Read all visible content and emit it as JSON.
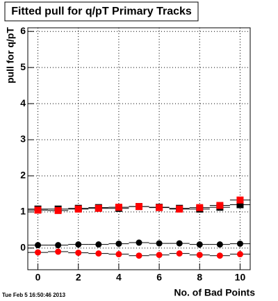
{
  "chart_data": {
    "type": "scatter",
    "title": "Fitted pull for q/pT Primary Tracks",
    "y_label": "pull for q/pT",
    "x_label": "No. of Bad Points",
    "footer": "Tue Feb  5 16:50:46 2013",
    "x": [
      0,
      1,
      2,
      3,
      4,
      5,
      6,
      7,
      8,
      9,
      10
    ],
    "series": [
      {
        "color": "#000000",
        "marker": "circle",
        "values": [
          0.08,
          0.08,
          0.1,
          0.1,
          0.12,
          0.15,
          0.13,
          0.13,
          0.1,
          0.1,
          0.12
        ]
      },
      {
        "color": "#ff0000",
        "marker": "circle",
        "values": [
          -0.12,
          -0.1,
          -0.13,
          -0.15,
          -0.17,
          -0.21,
          -0.19,
          -0.15,
          -0.19,
          -0.21,
          -0.17
        ]
      },
      {
        "color": "#000000",
        "marker": "square",
        "values": [
          1.08,
          1.08,
          1.1,
          1.12,
          1.1,
          1.15,
          1.13,
          1.1,
          1.08,
          1.13,
          1.2
        ]
      },
      {
        "color": "#ff0000",
        "marker": "square",
        "values": [
          1.05,
          1.04,
          1.08,
          1.1,
          1.13,
          1.15,
          1.12,
          1.08,
          1.12,
          1.18,
          1.33
        ]
      }
    ],
    "xlim": [
      -0.5,
      10.5
    ],
    "xticks": [
      0,
      2,
      4,
      6,
      8,
      10
    ],
    "ylim": [
      -0.6,
      6.1
    ],
    "yticks": [
      0,
      1,
      2,
      3,
      4,
      5,
      6
    ],
    "grid": true
  }
}
